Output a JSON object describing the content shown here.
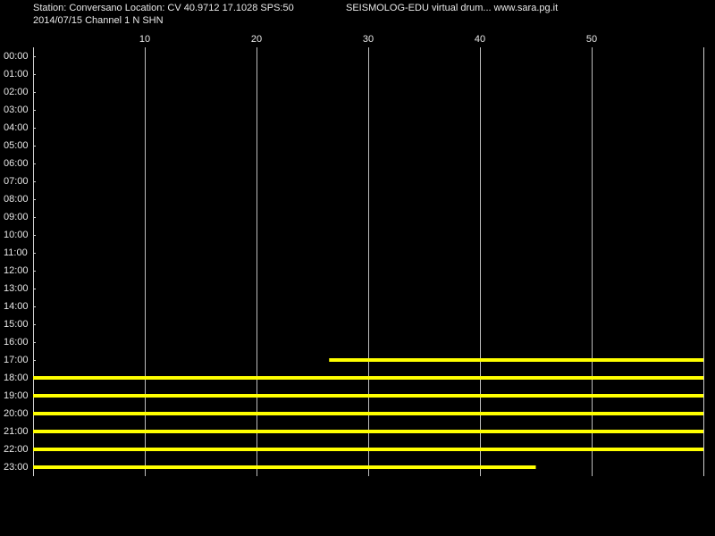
{
  "chart_data": {
    "type": "helicorder",
    "title": "Station: Conversano Location: CV 40.9712 17.1028 SPS:50",
    "subtitle": "2014/07/15  Channel 1 N SHN",
    "annotation": "SEISMOLOG-EDU virtual drum... www.sara.pg.it",
    "categories": [
      "00:00",
      "01:00",
      "02:00",
      "03:00",
      "04:00",
      "05:00",
      "06:00",
      "07:00",
      "08:00",
      "09:00",
      "10:00",
      "11:00",
      "12:00",
      "13:00",
      "14:00",
      "15:00",
      "16:00",
      "17:00",
      "18:00",
      "19:00",
      "20:00",
      "21:00",
      "22:00",
      "23:00"
    ],
    "start": [
      null,
      null,
      null,
      null,
      null,
      null,
      null,
      null,
      null,
      null,
      null,
      null,
      null,
      null,
      null,
      null,
      null,
      26.5,
      0,
      0,
      0,
      0,
      0,
      0
    ],
    "end": [
      null,
      null,
      null,
      null,
      null,
      null,
      null,
      null,
      null,
      null,
      null,
      null,
      null,
      null,
      null,
      null,
      null,
      60,
      60,
      60,
      60,
      60,
      60,
      45
    ],
    "color": "#ffff00",
    "xlim": [
      0,
      60
    ],
    "xticks": [
      10,
      20,
      30,
      40,
      50
    ],
    "grid": true
  }
}
